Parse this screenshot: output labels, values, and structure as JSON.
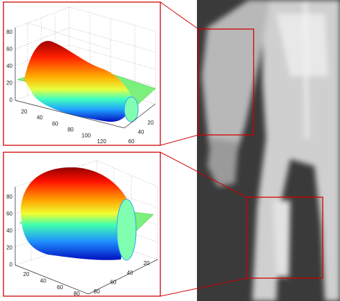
{
  "figure": {
    "top_plot": {
      "z_ticks": [
        0,
        20,
        40,
        60,
        80
      ],
      "x_ticks": [
        20,
        40,
        60,
        80,
        100,
        120
      ],
      "y_ticks": [
        20,
        40,
        60
      ]
    },
    "bottom_plot": {
      "z_ticks": [
        0,
        20,
        40,
        60,
        80
      ],
      "x_ticks": [
        20,
        40,
        60,
        80
      ],
      "y_ticks": [
        20,
        40,
        60,
        80
      ]
    }
  }
}
